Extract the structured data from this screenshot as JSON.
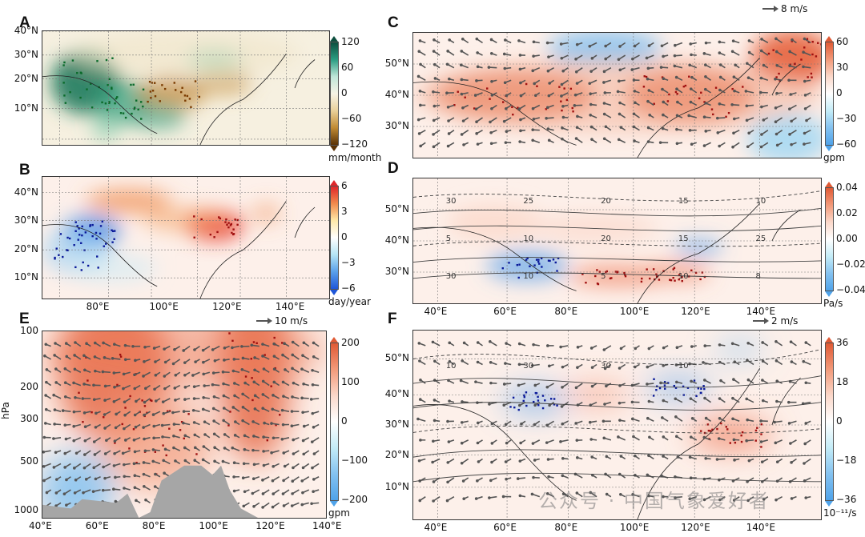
{
  "panels": [
    {
      "id": "A",
      "letter": "A",
      "ylabels": [
        "40°N",
        "30°N",
        "20°N",
        "10°N"
      ],
      "xlabels": [],
      "cbar_ticks": [
        "120",
        "60",
        "0",
        "−60",
        "−120"
      ],
      "unit": "mm/month",
      "vector_ref": "",
      "colormap": "brown-green",
      "cbar_top": "#0d4f3f",
      "cbar_bot": "#5a3206"
    },
    {
      "id": "B",
      "letter": "B",
      "ylabels": [
        "40°N",
        "30°N",
        "20°N",
        "10°N"
      ],
      "xlabels": [
        "80°E",
        "100°E",
        "120°E",
        "140°E"
      ],
      "cbar_ticks": [
        "6",
        "3",
        "0",
        "−3",
        "−6"
      ],
      "unit": "day/year",
      "vector_ref": "",
      "colormap": "blue-red",
      "cbar_top": "#e0262a",
      "cbar_bot": "#1e56d8"
    },
    {
      "id": "C",
      "letter": "C",
      "ylabels": [
        "50°N",
        "40°N",
        "30°N"
      ],
      "xlabels": [],
      "cbar_ticks": [
        "60",
        "30",
        "0",
        "−30",
        "−60"
      ],
      "unit": "gpm",
      "vector_ref": "8 m/s",
      "colormap": "blue-red",
      "cbar_top": "#e05a35",
      "cbar_bot": "#4fa3ea"
    },
    {
      "id": "D",
      "letter": "D",
      "ylabels": [
        "50°N",
        "40°N",
        "30°N"
      ],
      "xlabels": [
        "40°E",
        "60°E",
        "80°E",
        "100°E",
        "120°E",
        "140°E"
      ],
      "cbar_ticks": [
        "0.04",
        "0.02",
        "0.00",
        "−0.02",
        "−0.04"
      ],
      "unit": "Pa/s",
      "vector_ref": "",
      "colormap": "blue-red",
      "cbar_top": "#e05a35",
      "cbar_bot": "#4fa3ea",
      "contour_labels": [
        "30",
        "25",
        "20",
        "15",
        "10",
        "5",
        "10",
        "20",
        "15",
        "25",
        "30",
        "10",
        "5",
        "10",
        "8"
      ]
    },
    {
      "id": "E",
      "letter": "E",
      "ylabels": [
        "100",
        "200",
        "300",
        "500",
        "1000"
      ],
      "xlabels": [
        "40°E",
        "60°E",
        "80°E",
        "100°E",
        "120°E",
        "140°E"
      ],
      "cbar_ticks": [
        "200",
        "100",
        "0",
        "−100",
        "−200"
      ],
      "unit": "gpm",
      "vector_ref": "10 m/s",
      "yaxis_title": "hPa",
      "colormap": "blue-red",
      "cbar_top": "#e05a35",
      "cbar_bot": "#4fa3ea"
    },
    {
      "id": "F",
      "letter": "F",
      "ylabels": [
        "50°N",
        "40°N",
        "30°N",
        "20°N",
        "10°N"
      ],
      "xlabels": [
        "40°E",
        "60°E",
        "80°E",
        "100°E",
        "120°E",
        "140°E"
      ],
      "cbar_ticks": [
        "36",
        "18",
        "0",
        "−18",
        "−36"
      ],
      "unit": "10⁻¹¹/s",
      "vector_ref": "2 m/s",
      "colormap": "blue-red",
      "cbar_top": "#e05a35",
      "cbar_bot": "#4fa3ea",
      "contour_labels": [
        "10",
        "30",
        "30",
        "10"
      ]
    }
  ],
  "watermark": "公众号 · 中国气象爱好者"
}
